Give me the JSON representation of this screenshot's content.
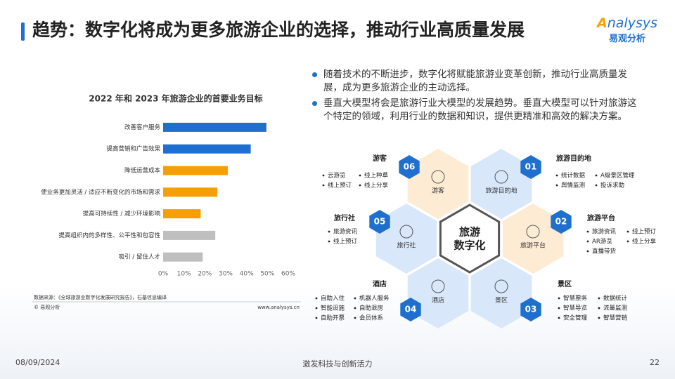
{
  "header": {
    "title": "趋势：数字化将成为更多旅游企业的选择，推动行业高质量发展"
  },
  "logo": {
    "brand": "nalysys",
    "name": "易观分析"
  },
  "chart_data": {
    "type": "hbar",
    "title": "2022 年和 2023 年旅游企业的首要业务目标",
    "categories": [
      "改善客户服务",
      "提高营销和广告效果",
      "降低运营成本",
      "使业务更加灵活 / 适应不断变化的市场和需求",
      "提高可持续性 / 减少环境影响",
      "提高组织内的多样性、公平性和包容性",
      "吸引 / 留住人才"
    ],
    "values": [
      49.5,
      42,
      31,
      26,
      18,
      25,
      19
    ],
    "colors": [
      "#1f6fcf",
      "#1f6fcf",
      "#f5a000",
      "#f5a000",
      "#f5a000",
      "#bfbfbf",
      "#bfbfbf"
    ],
    "xlim": [
      0,
      60
    ],
    "xticks": [
      {
        "value": 0,
        "label": "0%"
      },
      {
        "value": 10,
        "label": "10%"
      },
      {
        "value": 20,
        "label": "20%"
      },
      {
        "value": 30,
        "label": "30%"
      },
      {
        "value": 40,
        "label": "40%"
      },
      {
        "value": 50,
        "label": "50%"
      },
      {
        "value": 60,
        "label": "60%"
      }
    ],
    "grid": false
  },
  "chart_notes": {
    "source": "数据来源：《全球旅游业数字化发展研究报告》，石基信息编译",
    "copyright": "© 易观分析",
    "site": "www.analysys.cn"
  },
  "bullets": [
    "随着技术的不断进步，数字化将赋能旅游业变革创新，推动行业高质量发展，成为更多旅游企业的主动选择。",
    "垂直大模型将会是旅游行业大模型的发展趋势。垂直大模型可以针对旅游这个特定的领域，利用行业的数据和知识，提供更精准和高效的解决方案。"
  ],
  "diagram": {
    "center": [
      "旅游",
      "数字化"
    ],
    "nodes": [
      {
        "number": "06",
        "label": "游客",
        "title": "游客",
        "items": [
          [
            "云游览",
            "线上预订"
          ],
          [
            "线上种草",
            "线上分享"
          ]
        ]
      },
      {
        "number": "01",
        "label": "旅游目的地",
        "title": "旅游目的地",
        "items": [
          [
            "统计数据",
            "舆情监测"
          ],
          [
            "A级景区管理",
            "投诉求助"
          ]
        ]
      },
      {
        "number": "02",
        "label": "旅游平台",
        "title": "旅游平台",
        "items": [
          [
            "旅游资讯",
            "AR游览",
            "直播带货"
          ],
          [
            "线上预订",
            "线上分享"
          ]
        ]
      },
      {
        "number": "03",
        "label": "景区",
        "title": "景区",
        "items": [
          [
            "智慧票务",
            "智慧导览",
            "安全管理"
          ],
          [
            "数据统计",
            "流量监测",
            "智慧营销"
          ]
        ]
      },
      {
        "number": "04",
        "label": "酒店",
        "title": "酒店",
        "items": [
          [
            "自助入住",
            "智能设施",
            "自助开票"
          ],
          [
            "机器人服务",
            "自助退房",
            "会员体系"
          ]
        ]
      },
      {
        "number": "05",
        "label": "旅行社",
        "title": "旅行社",
        "items": [
          [
            "旅游资讯",
            "线上预订"
          ]
        ]
      }
    ]
  },
  "footer": {
    "date": "08/09/2024",
    "tagline": "激发科技与创新活力",
    "page": "22"
  }
}
